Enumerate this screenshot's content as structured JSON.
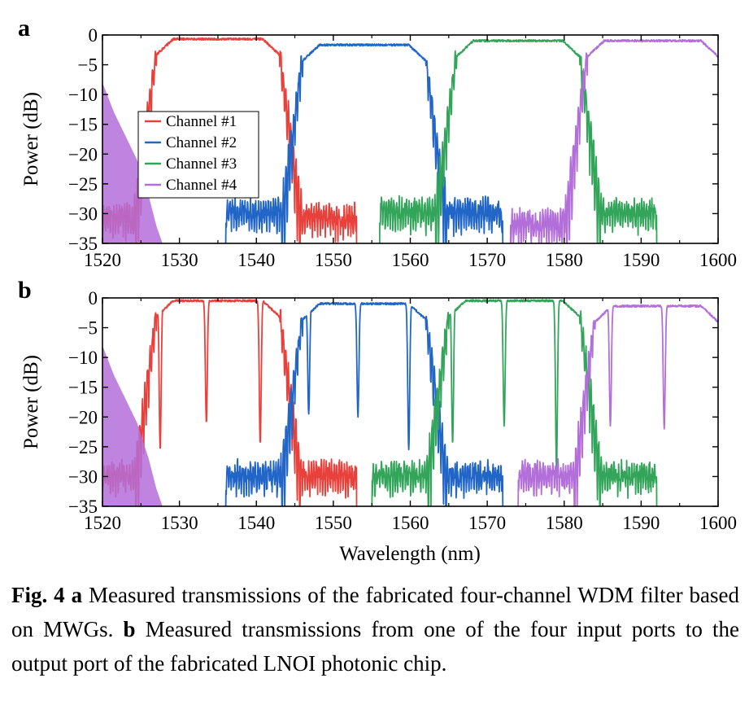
{
  "chart_data": [
    {
      "type": "line",
      "panel_label": "a",
      "xlabel": "",
      "ylabel": "Power (dB)",
      "xlim": [
        1520,
        1600
      ],
      "ylim": [
        -35,
        0
      ],
      "xticks": [
        1520,
        1530,
        1540,
        1550,
        1560,
        1570,
        1580,
        1590,
        1600
      ],
      "yticks": [
        0,
        -5,
        -10,
        -15,
        -20,
        -25,
        -30,
        -35
      ],
      "legend_position": "left",
      "series": [
        {
          "name": "Channel #1",
          "color": "#e8413c",
          "passband_nm": [
            1527,
            1543
          ],
          "peak_db": -0.5,
          "stopband_db": -32
        },
        {
          "name": "Channel #2",
          "color": "#2166c7",
          "passband_nm": [
            1546,
            1562
          ],
          "peak_db": -1.5,
          "stopband_db": -31
        },
        {
          "name": "Channel #3",
          "color": "#33a55a",
          "passband_nm": [
            1566,
            1582
          ],
          "peak_db": -0.8,
          "stopband_db": -31
        },
        {
          "name": "Channel #4",
          "color": "#b36fd9",
          "passband_nm": [
            1583,
            1600
          ],
          "peak_db": -0.8,
          "stopband_db": -33
        }
      ]
    },
    {
      "type": "line",
      "panel_label": "b",
      "xlabel": "Wavelength (nm)",
      "ylabel": "Power (dB)",
      "xlim": [
        1520,
        1600
      ],
      "ylim": [
        -35,
        0
      ],
      "xticks": [
        1520,
        1530,
        1540,
        1550,
        1560,
        1570,
        1580,
        1590,
        1600
      ],
      "yticks": [
        0,
        -5,
        -10,
        -15,
        -20,
        -25,
        -30,
        -35
      ],
      "series": [
        {
          "color": "#e8413c",
          "passband_nm": [
            1527,
            1543
          ],
          "peak_db": -0.3,
          "dips_nm": [
            1527.5,
            1533.5,
            1540.5
          ],
          "dips_db": [
            -25.5,
            -21,
            -24.5
          ]
        },
        {
          "color": "#2166c7",
          "passband_nm": [
            1546,
            1562
          ],
          "peak_db": -0.8,
          "dips_nm": [
            1546.8,
            1553.2,
            1559.8
          ],
          "dips_db": [
            -19.5,
            -20,
            -25.5
          ]
        },
        {
          "color": "#33a55a",
          "passband_nm": [
            1565,
            1582
          ],
          "peak_db": -0.3,
          "dips_nm": [
            1565.5,
            1572.2,
            1579
          ],
          "dips_db": [
            -24.5,
            -21.5,
            -28.5
          ]
        },
        {
          "color": "#b36fd9",
          "passband_nm": [
            1584,
            1600
          ],
          "peak_db": -1.2,
          "dips_nm": [
            1586,
            1593
          ],
          "dips_db": [
            -21.5,
            -22
          ]
        }
      ]
    }
  ],
  "caption": {
    "fig_label": "Fig. 4",
    "part_a_label": "a",
    "part_a_text": " Measured transmissions of the fabricated four-channel WDM filter based on MWGs. ",
    "part_b_label": "b",
    "part_b_text": " Measured transmissions from one of the four input ports to the output port of the fabricated LNOI photonic chip."
  }
}
